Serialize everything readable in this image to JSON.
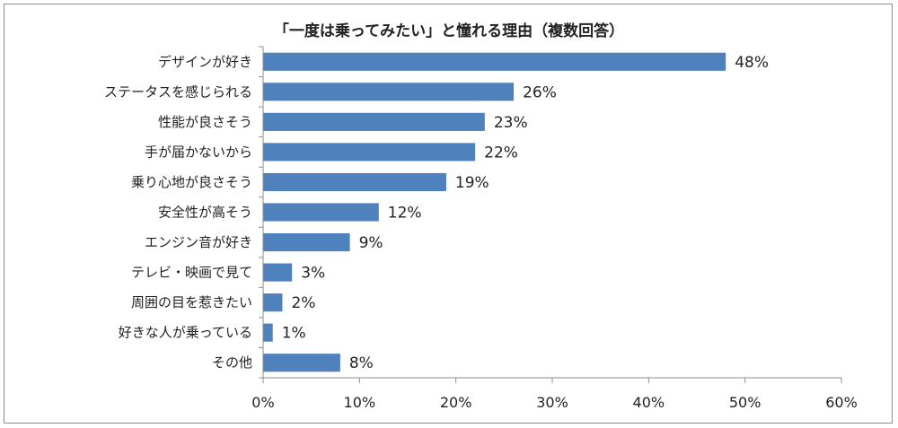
{
  "chart_data": {
    "type": "bar",
    "orientation": "horizontal",
    "title": "「一度は乗ってみたい」と憧れる理由（複数回答）",
    "categories": [
      "デザインが好き",
      "ステータスを感じられる",
      "性能が良さそう",
      "手が届かないから",
      "乗り心地が良さそう",
      "安全性が高そう",
      "エンジン音が好き",
      "テレビ・映画で見て",
      "周囲の目を惹きたい",
      "好きな人が乗っている",
      "その他"
    ],
    "values": [
      48,
      26,
      23,
      22,
      19,
      12,
      9,
      3,
      2,
      1,
      8
    ],
    "value_labels": [
      "48%",
      "26%",
      "23%",
      "22%",
      "19%",
      "12%",
      "9%",
      "3%",
      "2%",
      "1%",
      "8%"
    ],
    "xlim": [
      0,
      60
    ],
    "xticks": [
      0,
      10,
      20,
      30,
      40,
      50,
      60
    ],
    "xtick_labels": [
      "0%",
      "10%",
      "20%",
      "30%",
      "40%",
      "50%",
      "60%"
    ],
    "bar_color": "#4f81bd",
    "grid": false,
    "legend": "none"
  }
}
